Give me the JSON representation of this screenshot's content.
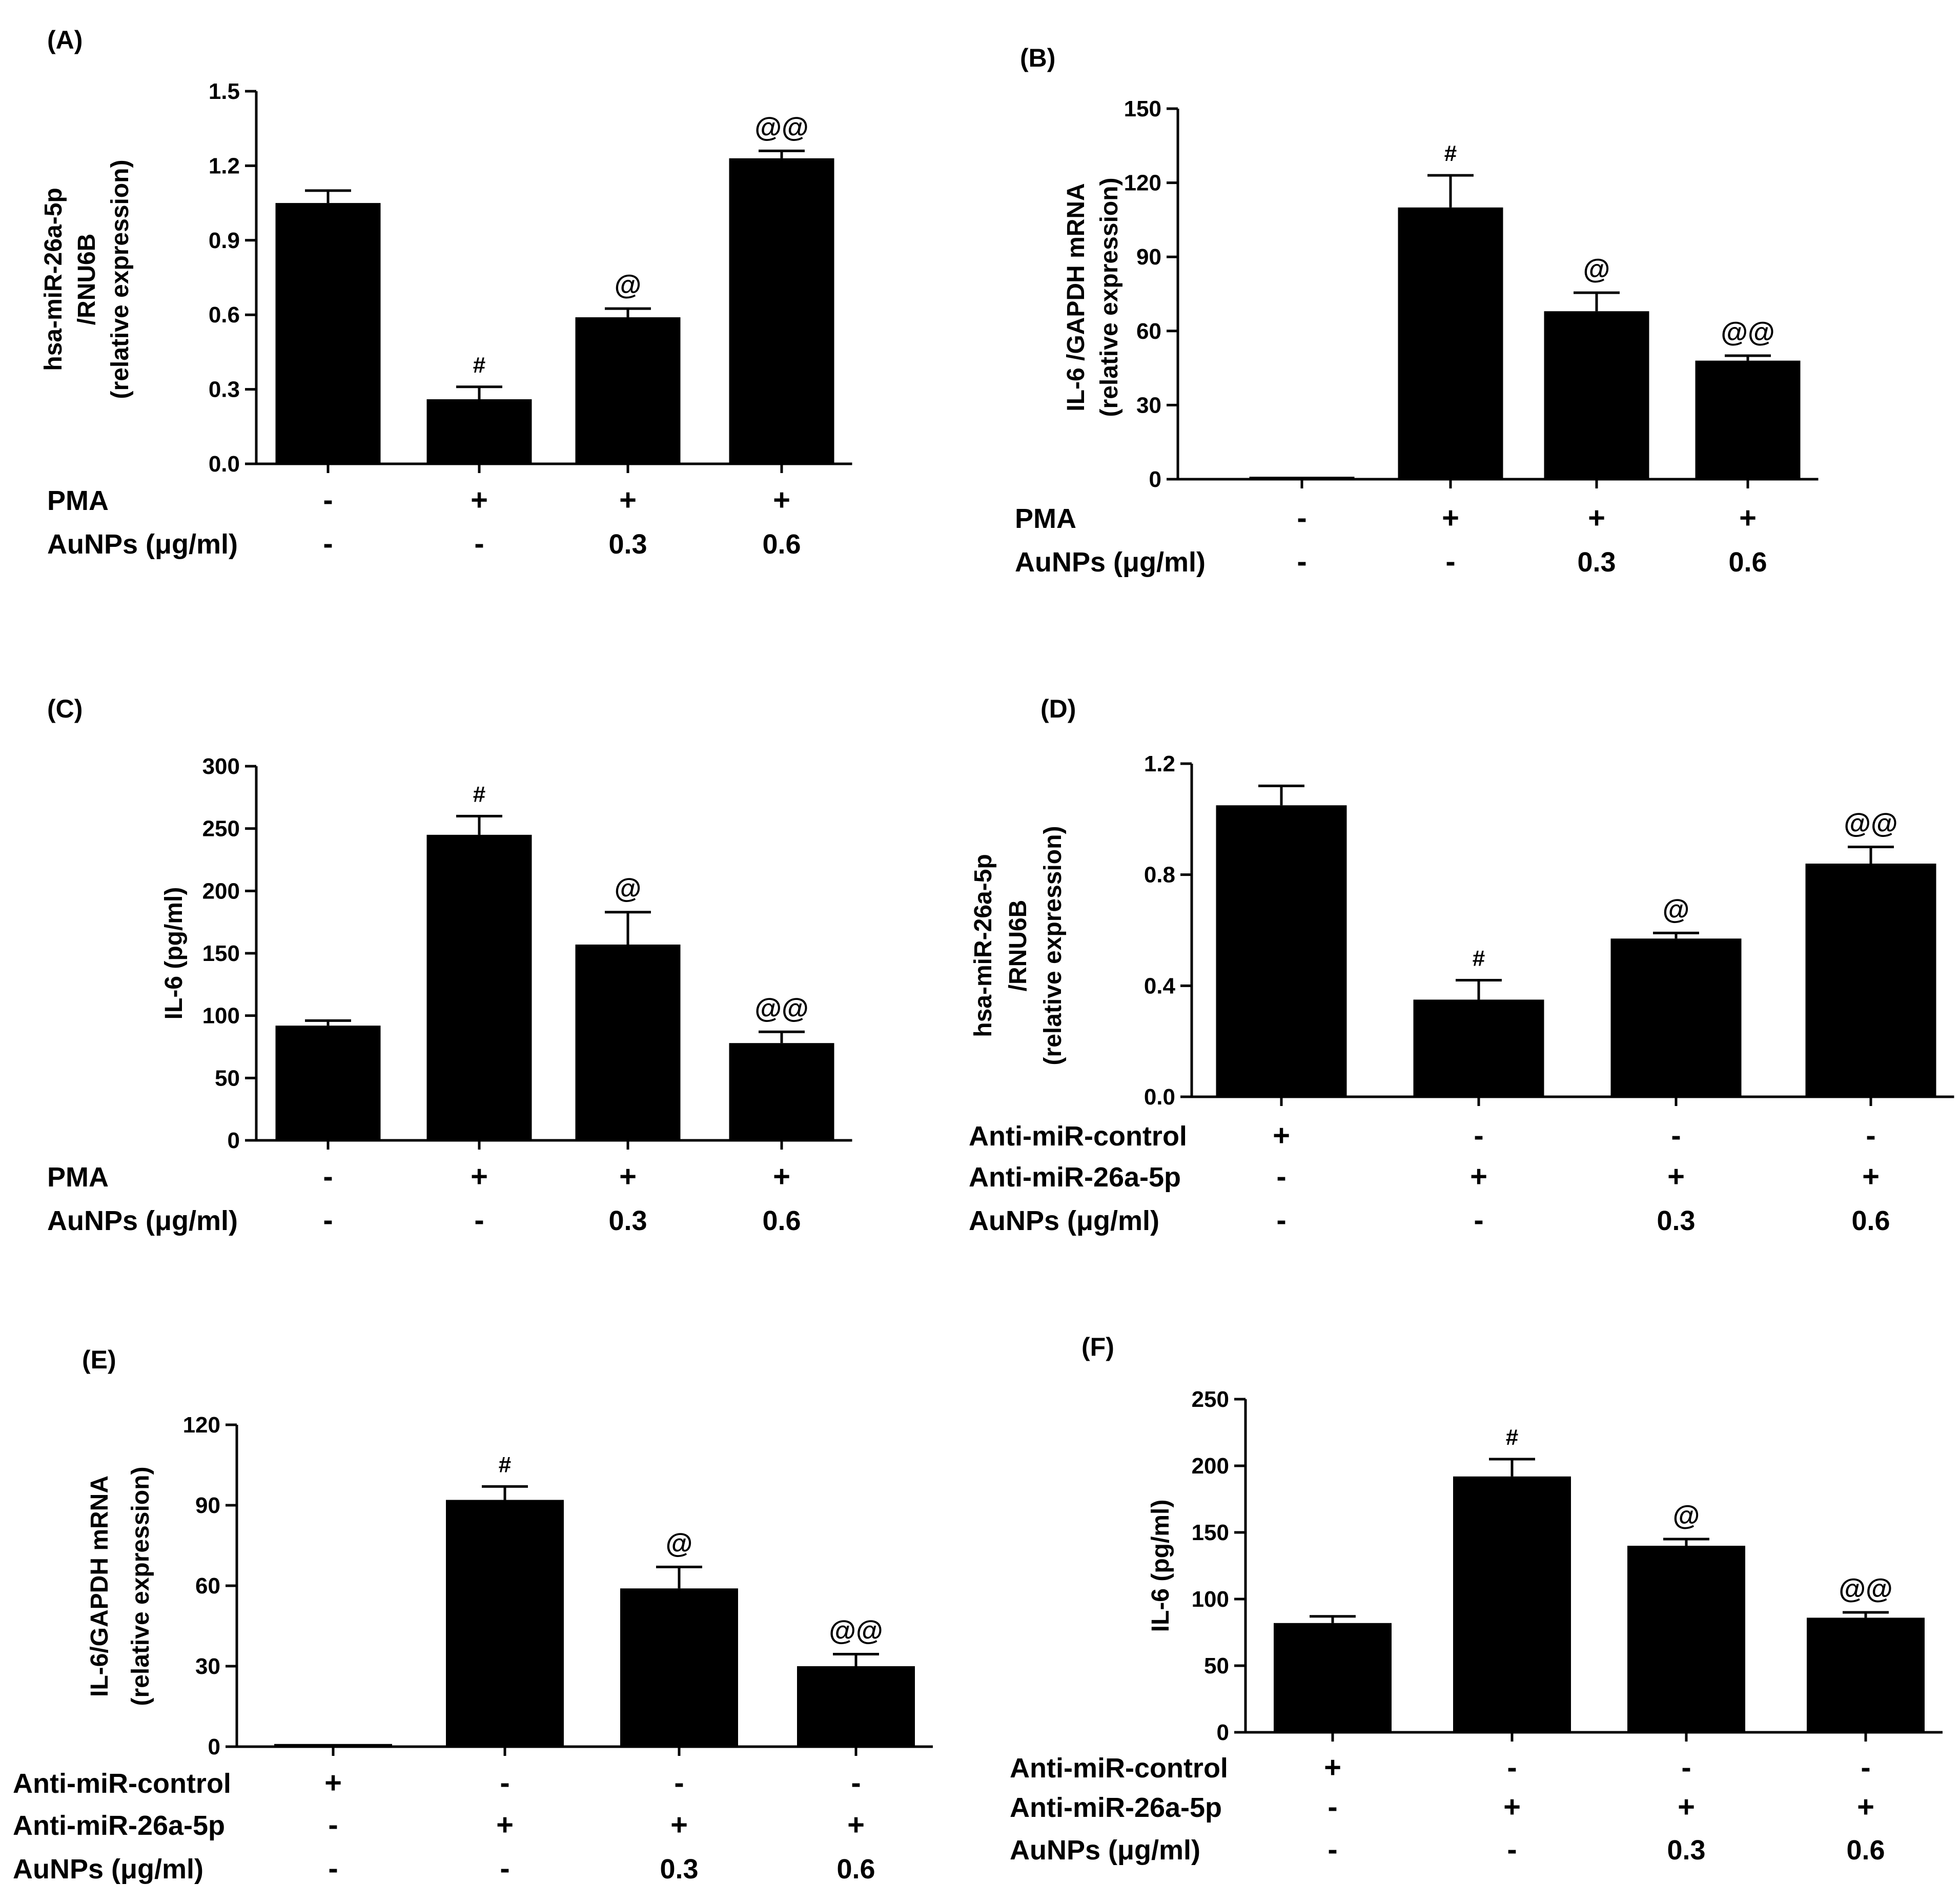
{
  "chart_data": [
    {
      "panel_label": "(A)",
      "type": "bar",
      "ylabel": [
        "hsa-miR-26a-5p",
        "/RNU6B",
        "(relative expression)"
      ],
      "yticks": [
        "0.0",
        "0.3",
        "0.6",
        "0.9",
        "1.2",
        "1.5"
      ],
      "ylim": [
        0,
        1.5
      ],
      "values": [
        1.05,
        0.26,
        0.59,
        1.23
      ],
      "errors": [
        0.05,
        0.05,
        0.035,
        0.03
      ],
      "annotations": [
        "",
        "#",
        "@",
        "@@"
      ],
      "rows": [
        {
          "label": "PMA",
          "values": [
            "-",
            "+",
            "+",
            "+"
          ]
        },
        {
          "label": "AuNPs (μg/ml)",
          "values": [
            "-",
            "-",
            "0.3",
            "0.6"
          ]
        }
      ]
    },
    {
      "panel_label": "(B)",
      "type": "bar",
      "ylabel": [
        "IL-6 /GAPDH mRNA",
        "(relative expression)"
      ],
      "yticks": [
        "0",
        "30",
        "60",
        "90",
        "120",
        "150"
      ],
      "ylim": [
        0,
        150
      ],
      "values": [
        1,
        110,
        68,
        48
      ],
      "errors": [
        0,
        13,
        7.5,
        2
      ],
      "annotations": [
        "",
        "#",
        "@",
        "@@"
      ],
      "rows": [
        {
          "label": "PMA",
          "values": [
            "-",
            "+",
            "+",
            "+"
          ]
        },
        {
          "label": "AuNPs (μg/ml)",
          "values": [
            "-",
            "-",
            "0.3",
            "0.6"
          ]
        }
      ]
    },
    {
      "panel_label": "(C)",
      "type": "bar",
      "ylabel": [
        "IL-6 (pg/ml)"
      ],
      "yticks": [
        "0",
        "50",
        "100",
        "150",
        "200",
        "250",
        "300"
      ],
      "ylim": [
        0,
        300
      ],
      "values": [
        92,
        245,
        157,
        78
      ],
      "errors": [
        4,
        15,
        26,
        9
      ],
      "annotations": [
        "",
        "#",
        "@",
        "@@"
      ],
      "rows": [
        {
          "label": "PMA",
          "values": [
            "-",
            "+",
            "+",
            "+"
          ]
        },
        {
          "label": "AuNPs (μg/ml)",
          "values": [
            "-",
            "-",
            "0.3",
            "0.6"
          ]
        }
      ]
    },
    {
      "panel_label": "(D)",
      "type": "bar",
      "ylabel": [
        "hsa-miR-26a-5p",
        "/RNU6B",
        "(relative expression)"
      ],
      "yticks": [
        "0.0",
        "0.4",
        "0.8",
        "1.2"
      ],
      "ylim": [
        0,
        1.2
      ],
      "values": [
        1.05,
        0.35,
        0.57,
        0.84
      ],
      "errors": [
        0.07,
        0.07,
        0.02,
        0.06
      ],
      "annotations": [
        "",
        "#",
        "@",
        "@@"
      ],
      "rows": [
        {
          "label": "Anti-miR-control",
          "values": [
            "+",
            "-",
            "-",
            "-"
          ]
        },
        {
          "label": "Anti-miR-26a-5p",
          "values": [
            "-",
            "+",
            "+",
            "+"
          ]
        },
        {
          "label": "AuNPs (μg/ml)",
          "values": [
            "-",
            "-",
            "0.3",
            "0.6"
          ]
        }
      ]
    },
    {
      "panel_label": "(E)",
      "type": "bar",
      "ylabel": [
        "IL-6/GAPDH mRNA",
        "(relative expression)"
      ],
      "yticks": [
        "0",
        "30",
        "60",
        "90",
        "120"
      ],
      "ylim": [
        0,
        120
      ],
      "values": [
        1,
        92,
        59,
        30
      ],
      "errors": [
        0,
        5,
        8,
        4.5
      ],
      "annotations": [
        "",
        "#",
        "@",
        "@@"
      ],
      "rows": [
        {
          "label": "Anti-miR-control",
          "values": [
            "+",
            "-",
            "-",
            "-"
          ]
        },
        {
          "label": "Anti-miR-26a-5p",
          "values": [
            "-",
            "+",
            "+",
            "+"
          ]
        },
        {
          "label": "AuNPs (μg/ml)",
          "values": [
            "-",
            "-",
            "0.3",
            "0.6"
          ]
        }
      ]
    },
    {
      "panel_label": "(F)",
      "type": "bar",
      "ylabel": [
        "IL-6 (pg/ml)"
      ],
      "yticks": [
        "0",
        "50",
        "100",
        "150",
        "200",
        "250"
      ],
      "ylim": [
        0,
        250
      ],
      "values": [
        82,
        192,
        140,
        86
      ],
      "errors": [
        5,
        13,
        5,
        4
      ],
      "annotations": [
        "",
        "#",
        "@",
        "@@"
      ],
      "rows": [
        {
          "label": "Anti-miR-control",
          "values": [
            "+",
            "-",
            "-",
            "-"
          ]
        },
        {
          "label": "Anti-miR-26a-5p",
          "values": [
            "-",
            "+",
            "+",
            "+"
          ]
        },
        {
          "label": "AuNPs (μg/ml)",
          "values": [
            "-",
            "-",
            "0.3",
            "0.6"
          ]
        }
      ]
    }
  ]
}
